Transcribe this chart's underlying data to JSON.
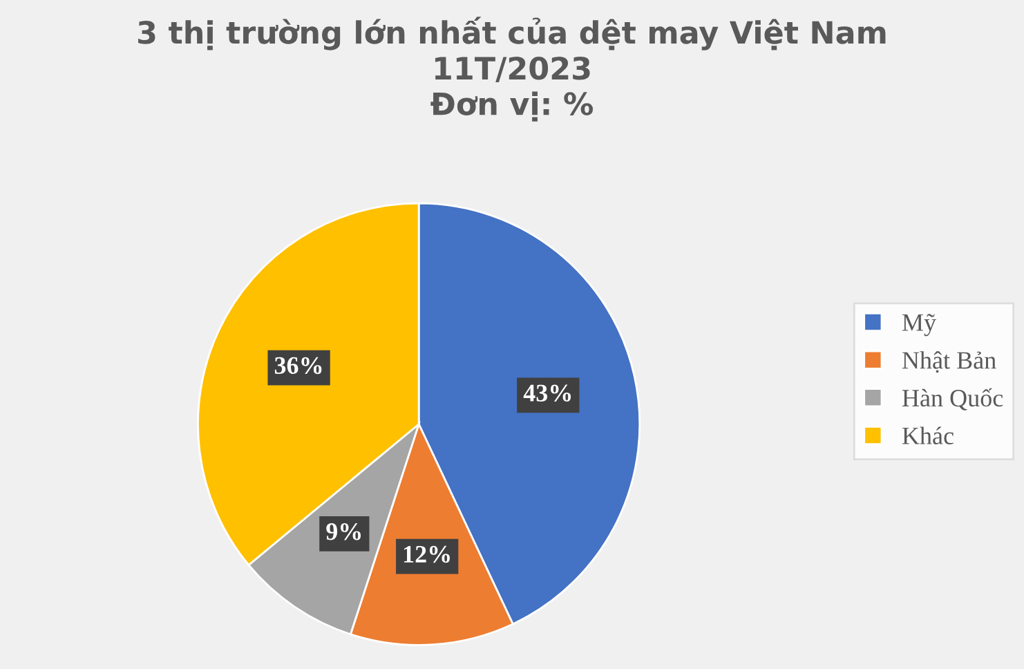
{
  "chart_data": {
    "type": "pie",
    "title": "3 thị trường lớn nhất của dệt may Việt Nam\n11T/2023\nĐơn vị: %",
    "categories": [
      "Mỹ",
      "Nhật Bản",
      "Hàn Quốc",
      "Khác"
    ],
    "values": [
      43,
      12,
      9,
      36
    ],
    "colors": [
      "#4472c4",
      "#ed7d31",
      "#a5a5a5",
      "#ffc000"
    ],
    "value_labels": [
      "43%",
      "12%",
      "9%",
      "36%"
    ],
    "legend": "right"
  }
}
